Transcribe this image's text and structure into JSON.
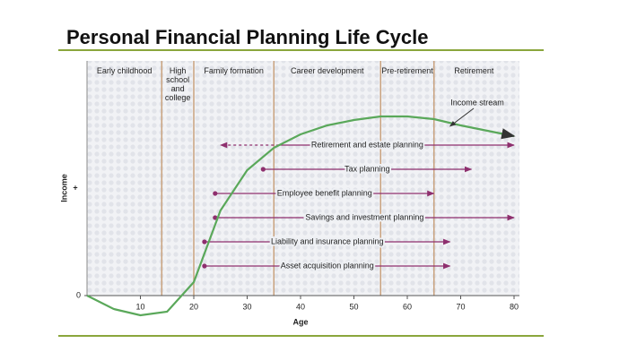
{
  "chart_data": {
    "type": "line",
    "title": "Personal Financial Planning Life Cycle",
    "x_label": "Age",
    "y_label": "Income",
    "y_sign": "+",
    "x": [
      0,
      5,
      10,
      15,
      20,
      25,
      30,
      35,
      40,
      45,
      50,
      55,
      60,
      65,
      70,
      75,
      80
    ],
    "series": [
      {
        "name": "Income stream",
        "color": "#5aa85a",
        "values": [
          0,
          -1.5,
          -2.2,
          -1.8,
          1.5,
          9.5,
          14,
          16.5,
          18,
          19,
          19.6,
          20,
          20,
          19.7,
          19,
          18.4,
          17.8
        ]
      }
    ],
    "xlim": [
      0,
      80
    ],
    "xticks": [
      10,
      20,
      30,
      40,
      50,
      60,
      70,
      80
    ],
    "ylim": [
      -3,
      26
    ],
    "yticks": [
      0
    ],
    "stages": [
      {
        "label": "Early childhood",
        "start": 0,
        "end": 14
      },
      {
        "label": "High school and college",
        "start": 14,
        "end": 20
      },
      {
        "label": "Family formation",
        "start": 20,
        "end": 35
      },
      {
        "label": "Career development",
        "start": 35,
        "end": 55
      },
      {
        "label": "Pre-retirement",
        "start": 55,
        "end": 65
      },
      {
        "label": "Retirement",
        "start": 65,
        "end": 80
      }
    ],
    "plans": [
      {
        "label": "Retirement and estate planning",
        "start": 25,
        "end": 80,
        "dashed": true
      },
      {
        "label": "Tax planning",
        "start": 33,
        "end": 72
      },
      {
        "label": "Employee benefit planning",
        "start": 24,
        "end": 65
      },
      {
        "label": "Savings and investment planning",
        "start": 24,
        "end": 80
      },
      {
        "label": "Liability and insurance planning",
        "start": 22,
        "end": 68
      },
      {
        "label": "Asset acquisition planning",
        "start": 22,
        "end": 68
      }
    ],
    "plan_color": "#8e2f6e",
    "stage_line_color": "#c9a27e"
  }
}
